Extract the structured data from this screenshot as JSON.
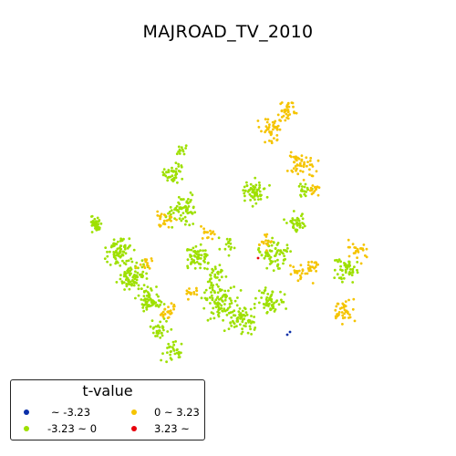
{
  "title": "MAJROAD_TV_2010",
  "legend": {
    "title": "t-value",
    "items": [
      {
        "label": "~ -3.23",
        "color": "#0b2fa8"
      },
      {
        "label": "-3.23 ~ 0",
        "color": "#9ee000"
      },
      {
        "label": "0 ~ 3.23",
        "color": "#f5c400"
      },
      {
        "label": "3.23 ~",
        "color": "#e8000b"
      }
    ]
  },
  "map_points": {
    "green_clusters": [
      [
        105,
        245,
        8,
        40
      ],
      [
        130,
        275,
        12,
        70
      ],
      [
        145,
        305,
        14,
        90
      ],
      [
        165,
        330,
        12,
        60
      ],
      [
        190,
        190,
        10,
        40
      ],
      [
        200,
        230,
        14,
        70
      ],
      [
        215,
        280,
        12,
        60
      ],
      [
        240,
        330,
        18,
        90
      ],
      [
        265,
        350,
        14,
        70
      ],
      [
        280,
        210,
        12,
        60
      ],
      [
        300,
        280,
        14,
        70
      ],
      [
        325,
        245,
        10,
        40
      ],
      [
        295,
        330,
        14,
        60
      ],
      [
        200,
        165,
        6,
        12
      ],
      [
        190,
        385,
        10,
        30
      ],
      [
        380,
        295,
        12,
        50
      ],
      [
        335,
        210,
        8,
        20
      ],
      [
        235,
        300,
        10,
        30
      ],
      [
        175,
        360,
        10,
        30
      ],
      [
        250,
        270,
        8,
        15
      ]
    ],
    "yellow_clusters": [
      [
        300,
        140,
        14,
        50
      ],
      [
        315,
        120,
        8,
        30
      ],
      [
        330,
        185,
        14,
        50
      ],
      [
        345,
        210,
        6,
        15
      ],
      [
        180,
        240,
        10,
        25
      ],
      [
        230,
        255,
        8,
        15
      ],
      [
        160,
        290,
        8,
        15
      ],
      [
        185,
        340,
        10,
        25
      ],
      [
        375,
        340,
        12,
        40
      ],
      [
        390,
        275,
        10,
        25
      ],
      [
        330,
        300,
        10,
        25
      ],
      [
        290,
        265,
        8,
        15
      ],
      [
        210,
        320,
        8,
        15
      ],
      [
        345,
        290,
        8,
        15
      ]
    ],
    "blue_points": [
      [
        315,
        367
      ],
      [
        318,
        364
      ]
    ],
    "red_points": [
      [
        283,
        283
      ]
    ]
  }
}
